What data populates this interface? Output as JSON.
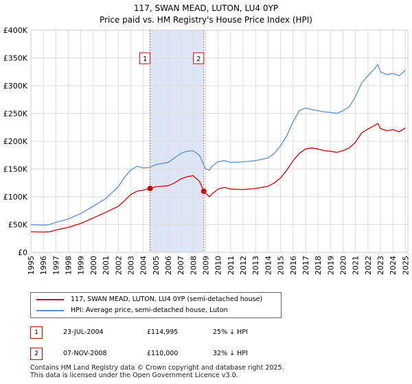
{
  "chart_data": {
    "type": "line",
    "title": "117, SWAN MEAD, LUTON, LU4 0YP",
    "subtitle": "Price paid vs. HM Registry's House Price Index (HPI)",
    "xlabel": "",
    "ylabel": "",
    "xlim": [
      1995,
      2025.2
    ],
    "ylim": [
      0,
      400000
    ],
    "yticks": [
      0,
      50000,
      100000,
      150000,
      200000,
      250000,
      300000,
      350000,
      400000
    ],
    "ytick_labels": [
      "£0",
      "£50K",
      "£100K",
      "£150K",
      "£200K",
      "£250K",
      "£300K",
      "£350K",
      "£400K"
    ],
    "xticks": [
      1995,
      1996,
      1997,
      1998,
      1999,
      2000,
      2001,
      2002,
      2003,
      2004,
      2005,
      2006,
      2007,
      2008,
      2009,
      2010,
      2011,
      2012,
      2013,
      2014,
      2015,
      2016,
      2017,
      2018,
      2019,
      2020,
      2021,
      2022,
      2023,
      2024,
      2025
    ],
    "xtick_labels": [
      "1995",
      "1996",
      "1997",
      "1998",
      "1999",
      "2000",
      "2001",
      "2002",
      "2003",
      "2004",
      "2005",
      "2006",
      "2007",
      "2008",
      "2009",
      "2010",
      "2011",
      "2012",
      "2013",
      "2014",
      "2015",
      "2016",
      "2017",
      "2018",
      "2019",
      "2020",
      "2021",
      "2022",
      "2023",
      "2024",
      "2025"
    ],
    "grid": true,
    "shaded_region": {
      "x": [
        2004.55,
        2008.85
      ],
      "color": "#dde6f7"
    },
    "series": [
      {
        "name": "HPI: Average price, semi-detached house, Luton",
        "color": "#5b8ed6",
        "x": [
          1995.0,
          1996.0,
          1996.5,
          1997.0,
          1998.0,
          1999.0,
          2000.0,
          2001.0,
          2002.0,
          2002.5,
          2003.0,
          2003.5,
          2004.0,
          2004.55,
          2005.0,
          2006.0,
          2006.5,
          2007.0,
          2007.5,
          2008.0,
          2008.5,
          2009.0,
          2009.3,
          2009.5,
          2010.0,
          2010.5,
          2011.0,
          2012.0,
          2013.0,
          2014.0,
          2014.5,
          2015.0,
          2015.5,
          2016.0,
          2016.5,
          2017.0,
          2017.5,
          2018.0,
          2018.5,
          2019.0,
          2019.5,
          2020.0,
          2020.5,
          2021.0,
          2021.5,
          2022.0,
          2022.5,
          2022.8,
          2023.0,
          2023.5,
          2024.0,
          2024.5,
          2025.0
        ],
        "values": [
          50000,
          49000,
          50000,
          54000,
          60000,
          70000,
          83000,
          97000,
          118000,
          135000,
          148000,
          155000,
          152000,
          153000,
          158000,
          162000,
          170000,
          178000,
          182000,
          183000,
          175000,
          150000,
          148000,
          155000,
          163000,
          165000,
          162000,
          163000,
          165000,
          170000,
          178000,
          192000,
          210000,
          235000,
          255000,
          260000,
          257000,
          255000,
          253000,
          252000,
          250000,
          255000,
          262000,
          280000,
          305000,
          318000,
          330000,
          338000,
          325000,
          320000,
          322000,
          318000,
          328000
        ]
      },
      {
        "name": "117, SWAN MEAD, LUTON, LU4 0YP (semi-detached house)",
        "color": "#cc0000",
        "x": [
          1995.0,
          1996.0,
          1996.5,
          1997.0,
          1998.0,
          1999.0,
          2000.0,
          2001.0,
          2002.0,
          2002.5,
          2003.0,
          2003.5,
          2004.0,
          2004.55,
          2005.0,
          2006.0,
          2006.5,
          2007.0,
          2007.5,
          2008.0,
          2008.5,
          2008.85,
          2009.3,
          2009.5,
          2010.0,
          2010.5,
          2011.0,
          2012.0,
          2013.0,
          2014.0,
          2014.5,
          2015.0,
          2015.5,
          2016.0,
          2016.5,
          2017.0,
          2017.5,
          2018.0,
          2018.5,
          2019.0,
          2019.5,
          2020.0,
          2020.5,
          2021.0,
          2021.5,
          2022.0,
          2022.5,
          2022.8,
          2023.0,
          2023.5,
          2024.0,
          2024.5,
          2025.0
        ],
        "values": [
          37000,
          36500,
          37000,
          40000,
          45000,
          52000,
          62000,
          72000,
          83000,
          93000,
          104000,
          110000,
          112000,
          114995,
          118000,
          120000,
          125000,
          132000,
          136000,
          138000,
          128000,
          110000,
          100000,
          105000,
          114000,
          117000,
          114000,
          113000,
          115000,
          119000,
          125000,
          134000,
          148000,
          165000,
          178000,
          186000,
          188000,
          186000,
          183000,
          182000,
          180000,
          183000,
          188000,
          198000,
          215000,
          222000,
          228000,
          232000,
          223000,
          219000,
          221000,
          217000,
          224000
        ]
      }
    ],
    "sales": [
      {
        "marker": "1",
        "x": 2004.55,
        "price_value": 114995
      },
      {
        "marker": "2",
        "x": 2008.85,
        "price_value": 110000
      }
    ]
  },
  "legend": {
    "property_label": "117, SWAN MEAD, LUTON, LU4 0YP (semi-detached house)",
    "hpi_label": "HPI: Average price, semi-detached house, Luton",
    "property_color": "#cc0000",
    "hpi_color": "#5b8ed6"
  },
  "sales_table": [
    {
      "marker": "1",
      "date": "23-JUL-2004",
      "price": "£114,995",
      "hpi": "25% ↓ HPI"
    },
    {
      "marker": "2",
      "date": "07-NOV-2008",
      "price": "£110,000",
      "hpi": "32% ↓ HPI"
    }
  ],
  "footer": {
    "line1": "Contains HM Land Registry data © Crown copyright and database right 2025.",
    "line2": "This data is licensed under the Open Government Licence v3.0."
  }
}
